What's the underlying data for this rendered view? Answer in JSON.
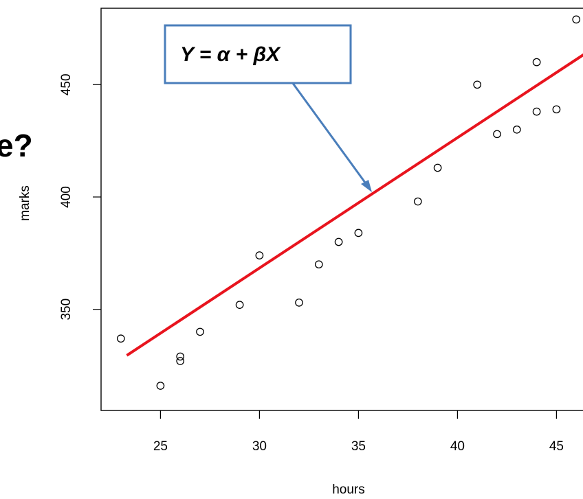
{
  "slide_fragment_text": "e?",
  "callout": {
    "text": "Y = α + βX",
    "border_color": "#4a7ebb"
  },
  "chart_data": {
    "type": "scatter",
    "title": "",
    "xlabel": "hours",
    "ylabel": "marks",
    "xlim": [
      22,
      47
    ],
    "ylim": [
      305,
      484
    ],
    "x_ticks": [
      25,
      30,
      35,
      40,
      45
    ],
    "y_ticks": [
      350,
      400,
      450
    ],
    "grid": false,
    "points": [
      {
        "x": 23,
        "y": 337
      },
      {
        "x": 25,
        "y": 316
      },
      {
        "x": 26,
        "y": 327
      },
      {
        "x": 26,
        "y": 329
      },
      {
        "x": 27,
        "y": 340
      },
      {
        "x": 29,
        "y": 352
      },
      {
        "x": 30,
        "y": 374
      },
      {
        "x": 32,
        "y": 353
      },
      {
        "x": 33,
        "y": 370
      },
      {
        "x": 34,
        "y": 380
      },
      {
        "x": 35,
        "y": 384
      },
      {
        "x": 38,
        "y": 398
      },
      {
        "x": 39,
        "y": 413
      },
      {
        "x": 41,
        "y": 450
      },
      {
        "x": 42,
        "y": 428
      },
      {
        "x": 43,
        "y": 430
      },
      {
        "x": 44,
        "y": 438
      },
      {
        "x": 44,
        "y": 460
      },
      {
        "x": 45,
        "y": 439
      },
      {
        "x": 46,
        "y": 479
      }
    ],
    "fit_line": {
      "x": [
        23.3,
        47
      ],
      "y": [
        329.5,
        467
      ],
      "color": "#e8141e"
    },
    "point_color": "#000000"
  }
}
